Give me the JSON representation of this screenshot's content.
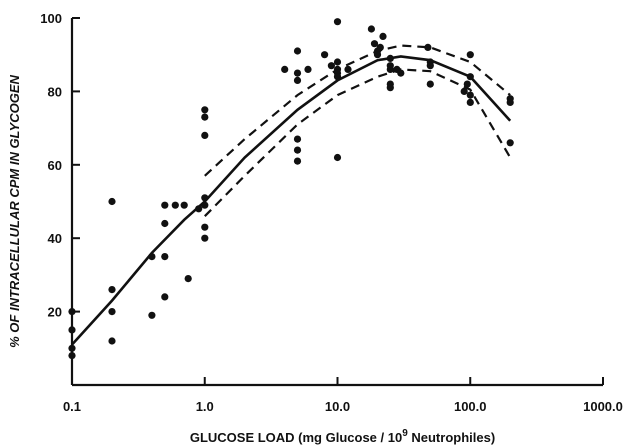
{
  "chart_data": {
    "type": "scatter",
    "title": "",
    "xlabel_main": "GLUCOSE  LOAD  (mg  Glucose / 10",
    "xlabel_sup": "9",
    "xlabel_tail": "  Neutrophiles)",
    "ylabel": "% OF INTRACELLULAR CPM IN GLYCOGEN",
    "x_scale": "log",
    "xlim": [
      0.1,
      1000.0
    ],
    "ylim": [
      0,
      100
    ],
    "x_ticks": [
      0.1,
      1.0,
      10.0,
      100.0,
      1000.0
    ],
    "x_tick_labels": [
      "0.1",
      "1.0",
      "10.0",
      "100.0",
      "1000.0"
    ],
    "y_ticks": [
      20,
      40,
      60,
      80,
      100
    ],
    "y_tick_labels": [
      "20",
      "40",
      "60",
      "80",
      "100"
    ],
    "grid": false,
    "series": [
      {
        "type": "scatter",
        "x": [
          0.1,
          0.1,
          0.1,
          0.1,
          0.2,
          0.2,
          0.2,
          0.2,
          0.4,
          0.4,
          0.5,
          0.5,
          0.5,
          0.5,
          0.6,
          0.7,
          0.75,
          0.9,
          1.0,
          1.0,
          1.0,
          1.0,
          1.0,
          1.0,
          1.0,
          4.0,
          5.0,
          5.0,
          5.0,
          5.0,
          5.0,
          5.0,
          6.0,
          8.0,
          9.0,
          10.0,
          10.0,
          10.0,
          10.0,
          10.0,
          10.0,
          12.0,
          18.0,
          19.0,
          20.0,
          20.0,
          21.0,
          22.0,
          25.0,
          25.0,
          25.0,
          25.0,
          25.0,
          28.0,
          30.0,
          48.0,
          50.0,
          50.0,
          50.0,
          90.0,
          95.0,
          100.0,
          100.0,
          100.0,
          100.0,
          200.0,
          200.0,
          200.0
        ],
        "y": [
          20,
          15,
          10,
          8,
          50,
          26,
          20,
          12,
          35,
          19,
          49,
          44,
          35,
          24,
          49,
          49,
          29,
          48,
          75,
          73,
          68,
          51,
          49,
          43,
          40,
          86,
          91,
          85,
          83,
          67,
          64,
          61,
          86,
          90,
          87,
          99,
          88,
          86,
          85,
          84,
          62,
          86,
          97,
          93,
          91,
          90,
          92,
          95,
          89,
          87,
          86,
          82,
          81,
          86,
          85,
          92,
          88,
          87,
          82,
          80,
          82,
          90,
          84,
          79,
          77,
          78,
          77,
          66
        ]
      },
      {
        "type": "line",
        "style": "solid",
        "x": [
          0.1,
          0.2,
          0.4,
          0.7,
          1.0,
          2.0,
          5.0,
          10.0,
          20.0,
          30.0,
          50.0,
          100.0,
          200.0
        ],
        "y": [
          11,
          23,
          36,
          45,
          50,
          62,
          75,
          83,
          88.5,
          89.5,
          88.5,
          84,
          72
        ]
      },
      {
        "type": "line",
        "style": "dashed",
        "x": [
          1.0,
          2.0,
          5.0,
          10.0,
          20.0,
          30.0,
          50.0,
          100.0,
          200.0
        ],
        "y": [
          57,
          67,
          79,
          86,
          91,
          92.5,
          92,
          88,
          79
        ]
      },
      {
        "type": "line",
        "style": "dashed",
        "x": [
          1.0,
          2.0,
          5.0,
          10.0,
          20.0,
          30.0,
          50.0,
          100.0,
          200.0
        ],
        "y": [
          46,
          57,
          71,
          79,
          84,
          86,
          85.5,
          80.5,
          62
        ]
      }
    ]
  }
}
